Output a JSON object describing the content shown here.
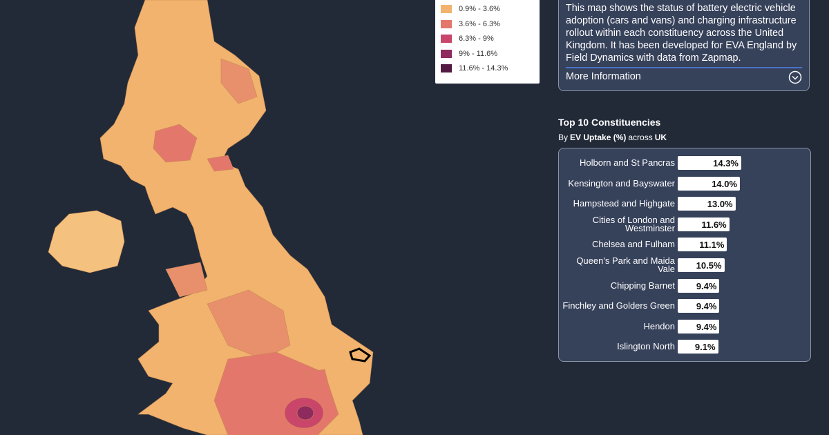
{
  "legend": {
    "items": [
      {
        "label": "0.9% - 3.6%",
        "color": "#f1b36d"
      },
      {
        "label": "3.6% - 6.3%",
        "color": "#e4776b"
      },
      {
        "label": "6.3% - 9%",
        "color": "#c9456a"
      },
      {
        "label": "9% - 11.6%",
        "color": "#8e2a5d"
      },
      {
        "label": "11.6% - 14.3%",
        "color": "#521a42"
      }
    ]
  },
  "info": {
    "text": "This map shows the status of battery electric vehicle adoption (cars and vans) and charging infrastructure rollout within each constituency across the United Kingdom. It has been developed for EVA England by Field Dynamics with data from Zapmap.",
    "link": "More Information"
  },
  "chart_data": {
    "type": "bar",
    "title": "Top 10 Constituencies",
    "subtitle": [
      "By",
      "EV Uptake (%)",
      "across",
      "UK"
    ],
    "categories": [
      "Holborn and St Pancras",
      "Kensington and Bayswater",
      "Hampstead and Highgate",
      "Cities of London and Westminster",
      "Chelsea and Fulham",
      "Queen's Park and Maida Vale",
      "Chipping Barnet",
      "Finchley and Golders Green",
      "Hendon",
      "Islington North"
    ],
    "values": [
      14.3,
      14.0,
      13.0,
      11.6,
      11.1,
      10.5,
      9.4,
      9.4,
      9.4,
      9.1
    ],
    "value_labels": [
      "14.3%",
      "14.0%",
      "13.0%",
      "11.6%",
      "11.1%",
      "10.5%",
      "9.4%",
      "9.4%",
      "9.4%",
      "9.1%"
    ],
    "color": "#ffffff"
  }
}
